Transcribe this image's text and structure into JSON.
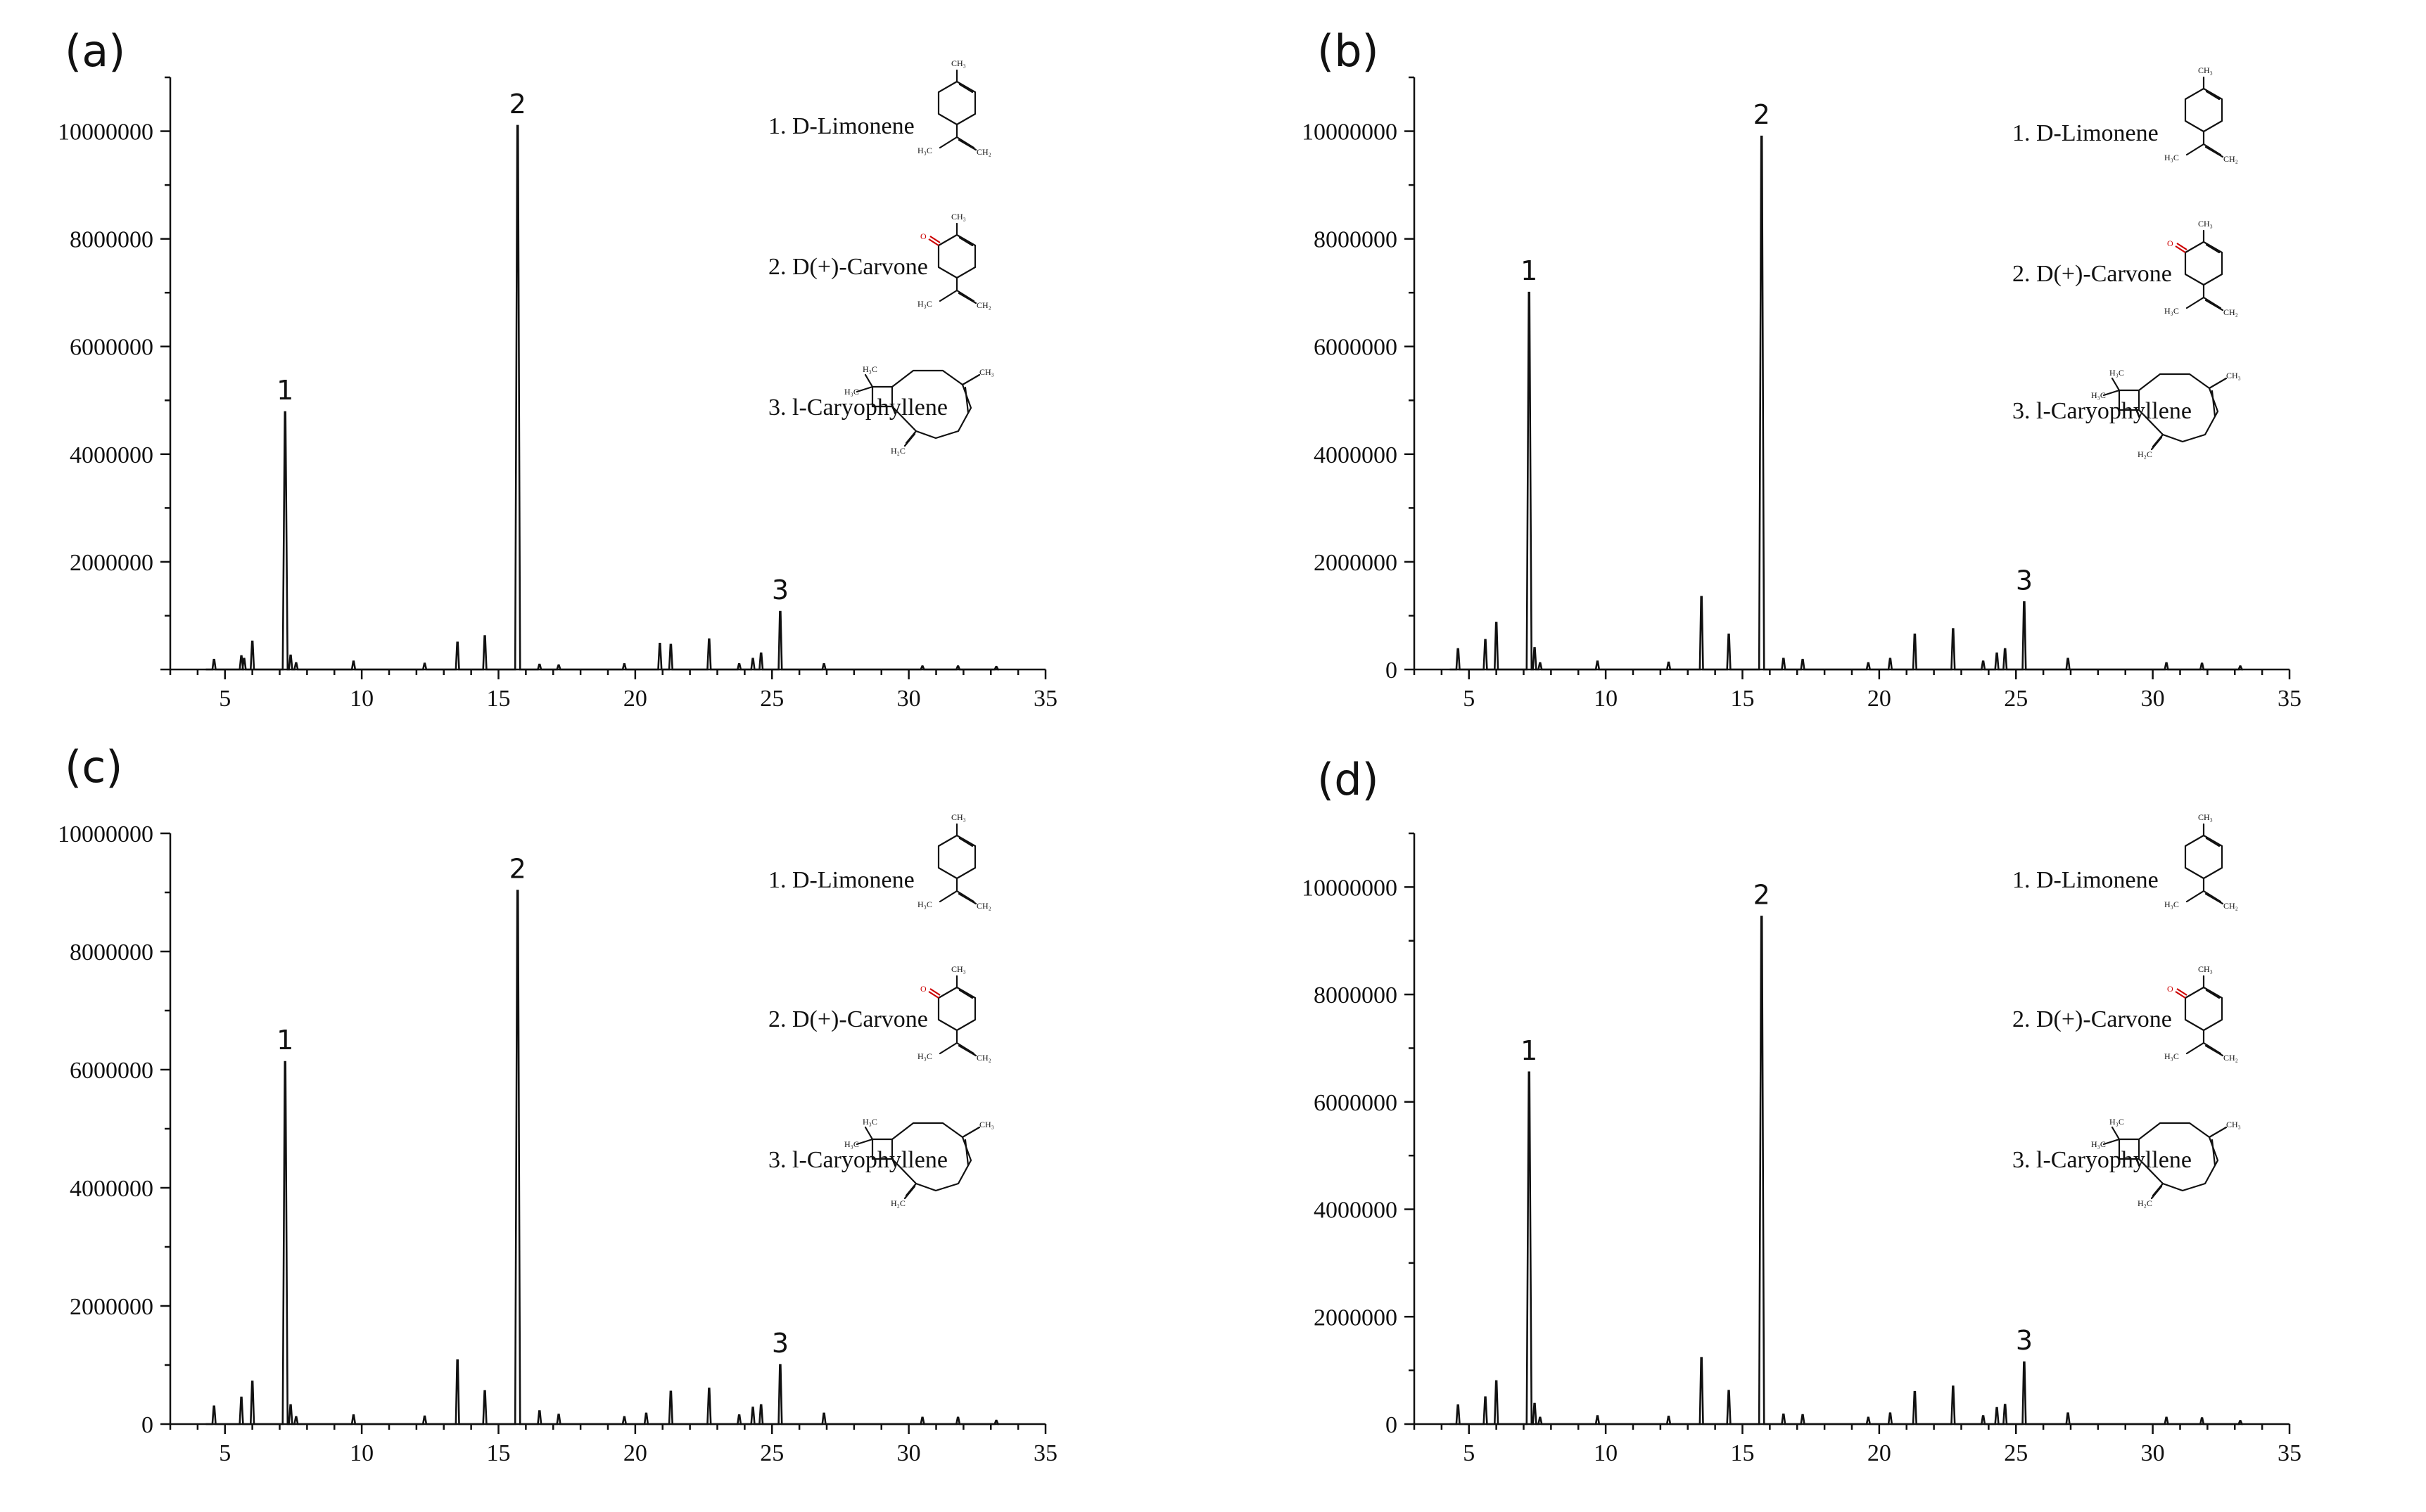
{
  "figure": {
    "panels": [
      "(a)",
      "(b)",
      "(c)",
      "(d)"
    ],
    "legend": [
      "1. D-Limonene",
      "2. D(+)-Carvone",
      "3. l-Caryophyllene"
    ],
    "structure_text": {
      "ch3": "CH₃",
      "h3c": "H₃C",
      "ch2": "CH₂",
      "h2c": "H₂C",
      "o": "O"
    },
    "colors": {
      "trace": "#111111",
      "axis": "#111111",
      "oxygen": "#cc0000"
    }
  },
  "chart_data": [
    {
      "type": "line",
      "panel": "(a)",
      "xlim": [
        3,
        35
      ],
      "ylim": [
        0,
        11000000
      ],
      "xticks": [
        5,
        10,
        15,
        20,
        25,
        30,
        35
      ],
      "yticks": [
        2000000,
        4000000,
        6000000,
        8000000,
        10000000
      ],
      "peaks": [
        {
          "x": 4.6,
          "y": 180000
        },
        {
          "x": 5.6,
          "y": 250000
        },
        {
          "x": 5.7,
          "y": 200000
        },
        {
          "x": 6.0,
          "y": 520000
        },
        {
          "x": 7.2,
          "y": 4780000
        },
        {
          "x": 7.4,
          "y": 260000
        },
        {
          "x": 7.6,
          "y": 120000
        },
        {
          "x": 9.7,
          "y": 150000
        },
        {
          "x": 12.3,
          "y": 110000
        },
        {
          "x": 13.5,
          "y": 500000
        },
        {
          "x": 14.5,
          "y": 620000
        },
        {
          "x": 15.7,
          "y": 10100000
        },
        {
          "x": 16.5,
          "y": 90000
        },
        {
          "x": 17.2,
          "y": 80000
        },
        {
          "x": 19.6,
          "y": 100000
        },
        {
          "x": 20.9,
          "y": 480000
        },
        {
          "x": 21.3,
          "y": 460000
        },
        {
          "x": 22.7,
          "y": 560000
        },
        {
          "x": 23.8,
          "y": 100000
        },
        {
          "x": 24.3,
          "y": 200000
        },
        {
          "x": 24.6,
          "y": 300000
        },
        {
          "x": 25.3,
          "y": 1070000
        },
        {
          "x": 26.9,
          "y": 100000
        },
        {
          "x": 30.5,
          "y": 60000
        },
        {
          "x": 31.8,
          "y": 60000
        },
        {
          "x": 33.2,
          "y": 50000
        }
      ],
      "peak_labels": [
        {
          "label": "1",
          "x": 7.2,
          "y": 4780000
        },
        {
          "label": "2",
          "x": 15.7,
          "y": 10100000
        },
        {
          "label": "3",
          "x": 25.3,
          "y": 1070000
        }
      ]
    },
    {
      "type": "line",
      "panel": "(b)",
      "xlim": [
        3,
        35
      ],
      "ylim": [
        0,
        11000000
      ],
      "xticks": [
        5,
        10,
        15,
        20,
        25,
        30,
        35
      ],
      "yticks": [
        0,
        2000000,
        4000000,
        6000000,
        8000000,
        10000000
      ],
      "peaks": [
        {
          "x": 4.6,
          "y": 380000
        },
        {
          "x": 5.6,
          "y": 550000
        },
        {
          "x": 6.0,
          "y": 870000
        },
        {
          "x": 7.2,
          "y": 7000000
        },
        {
          "x": 7.4,
          "y": 400000
        },
        {
          "x": 7.6,
          "y": 120000
        },
        {
          "x": 9.7,
          "y": 150000
        },
        {
          "x": 12.3,
          "y": 130000
        },
        {
          "x": 13.5,
          "y": 1350000
        },
        {
          "x": 14.5,
          "y": 650000
        },
        {
          "x": 15.7,
          "y": 9900000
        },
        {
          "x": 16.5,
          "y": 200000
        },
        {
          "x": 17.2,
          "y": 180000
        },
        {
          "x": 19.6,
          "y": 120000
        },
        {
          "x": 20.4,
          "y": 200000
        },
        {
          "x": 21.3,
          "y": 650000
        },
        {
          "x": 22.7,
          "y": 750000
        },
        {
          "x": 23.8,
          "y": 150000
        },
        {
          "x": 24.3,
          "y": 300000
        },
        {
          "x": 24.6,
          "y": 380000
        },
        {
          "x": 25.3,
          "y": 1250000
        },
        {
          "x": 26.9,
          "y": 200000
        },
        {
          "x": 30.5,
          "y": 120000
        },
        {
          "x": 31.8,
          "y": 110000
        },
        {
          "x": 33.2,
          "y": 60000
        }
      ],
      "peak_labels": [
        {
          "label": "1",
          "x": 7.2,
          "y": 7000000
        },
        {
          "label": "2",
          "x": 15.7,
          "y": 9900000
        },
        {
          "label": "3",
          "x": 25.3,
          "y": 1250000
        }
      ]
    },
    {
      "type": "line",
      "panel": "(c)",
      "xlim": [
        3,
        35
      ],
      "ylim": [
        0,
        10000000
      ],
      "xticks": [
        5,
        10,
        15,
        20,
        25,
        30,
        35
      ],
      "yticks": [
        0,
        2000000,
        4000000,
        6000000,
        8000000,
        10000000
      ],
      "peaks": [
        {
          "x": 4.6,
          "y": 300000
        },
        {
          "x": 5.6,
          "y": 450000
        },
        {
          "x": 6.0,
          "y": 720000
        },
        {
          "x": 7.2,
          "y": 6130000
        },
        {
          "x": 7.4,
          "y": 320000
        },
        {
          "x": 7.6,
          "y": 120000
        },
        {
          "x": 9.7,
          "y": 150000
        },
        {
          "x": 12.3,
          "y": 130000
        },
        {
          "x": 13.5,
          "y": 1080000
        },
        {
          "x": 14.5,
          "y": 560000
        },
        {
          "x": 15.7,
          "y": 9030000
        },
        {
          "x": 16.5,
          "y": 220000
        },
        {
          "x": 17.2,
          "y": 160000
        },
        {
          "x": 19.6,
          "y": 120000
        },
        {
          "x": 20.4,
          "y": 180000
        },
        {
          "x": 21.3,
          "y": 550000
        },
        {
          "x": 22.7,
          "y": 600000
        },
        {
          "x": 23.8,
          "y": 150000
        },
        {
          "x": 24.3,
          "y": 280000
        },
        {
          "x": 24.6,
          "y": 320000
        },
        {
          "x": 25.3,
          "y": 1000000
        },
        {
          "x": 26.9,
          "y": 180000
        },
        {
          "x": 30.5,
          "y": 110000
        },
        {
          "x": 31.8,
          "y": 110000
        },
        {
          "x": 33.2,
          "y": 60000
        }
      ],
      "peak_labels": [
        {
          "label": "1",
          "x": 7.2,
          "y": 6130000
        },
        {
          "label": "2",
          "x": 15.7,
          "y": 9030000
        },
        {
          "label": "3",
          "x": 25.3,
          "y": 1000000
        }
      ]
    },
    {
      "type": "line",
      "panel": "(d)",
      "xlim": [
        3,
        35
      ],
      "ylim": [
        0,
        11000000
      ],
      "xticks": [
        5,
        10,
        15,
        20,
        25,
        30,
        35
      ],
      "yticks": [
        0,
        2000000,
        4000000,
        6000000,
        8000000,
        10000000
      ],
      "peaks": [
        {
          "x": 4.6,
          "y": 350000
        },
        {
          "x": 5.6,
          "y": 500000
        },
        {
          "x": 6.0,
          "y": 800000
        },
        {
          "x": 7.2,
          "y": 6550000
        },
        {
          "x": 7.4,
          "y": 380000
        },
        {
          "x": 7.6,
          "y": 120000
        },
        {
          "x": 9.7,
          "y": 150000
        },
        {
          "x": 12.3,
          "y": 140000
        },
        {
          "x": 13.5,
          "y": 1230000
        },
        {
          "x": 14.5,
          "y": 620000
        },
        {
          "x": 15.7,
          "y": 9450000
        },
        {
          "x": 16.5,
          "y": 180000
        },
        {
          "x": 17.2,
          "y": 170000
        },
        {
          "x": 19.6,
          "y": 120000
        },
        {
          "x": 20.4,
          "y": 200000
        },
        {
          "x": 21.3,
          "y": 600000
        },
        {
          "x": 22.7,
          "y": 700000
        },
        {
          "x": 23.8,
          "y": 150000
        },
        {
          "x": 24.3,
          "y": 300000
        },
        {
          "x": 24.6,
          "y": 360000
        },
        {
          "x": 25.3,
          "y": 1150000
        },
        {
          "x": 26.9,
          "y": 200000
        },
        {
          "x": 30.5,
          "y": 120000
        },
        {
          "x": 31.8,
          "y": 110000
        },
        {
          "x": 33.2,
          "y": 60000
        }
      ],
      "peak_labels": [
        {
          "label": "1",
          "x": 7.2,
          "y": 6550000
        },
        {
          "label": "2",
          "x": 15.7,
          "y": 9450000
        },
        {
          "label": "3",
          "x": 25.3,
          "y": 1150000
        }
      ]
    }
  ]
}
